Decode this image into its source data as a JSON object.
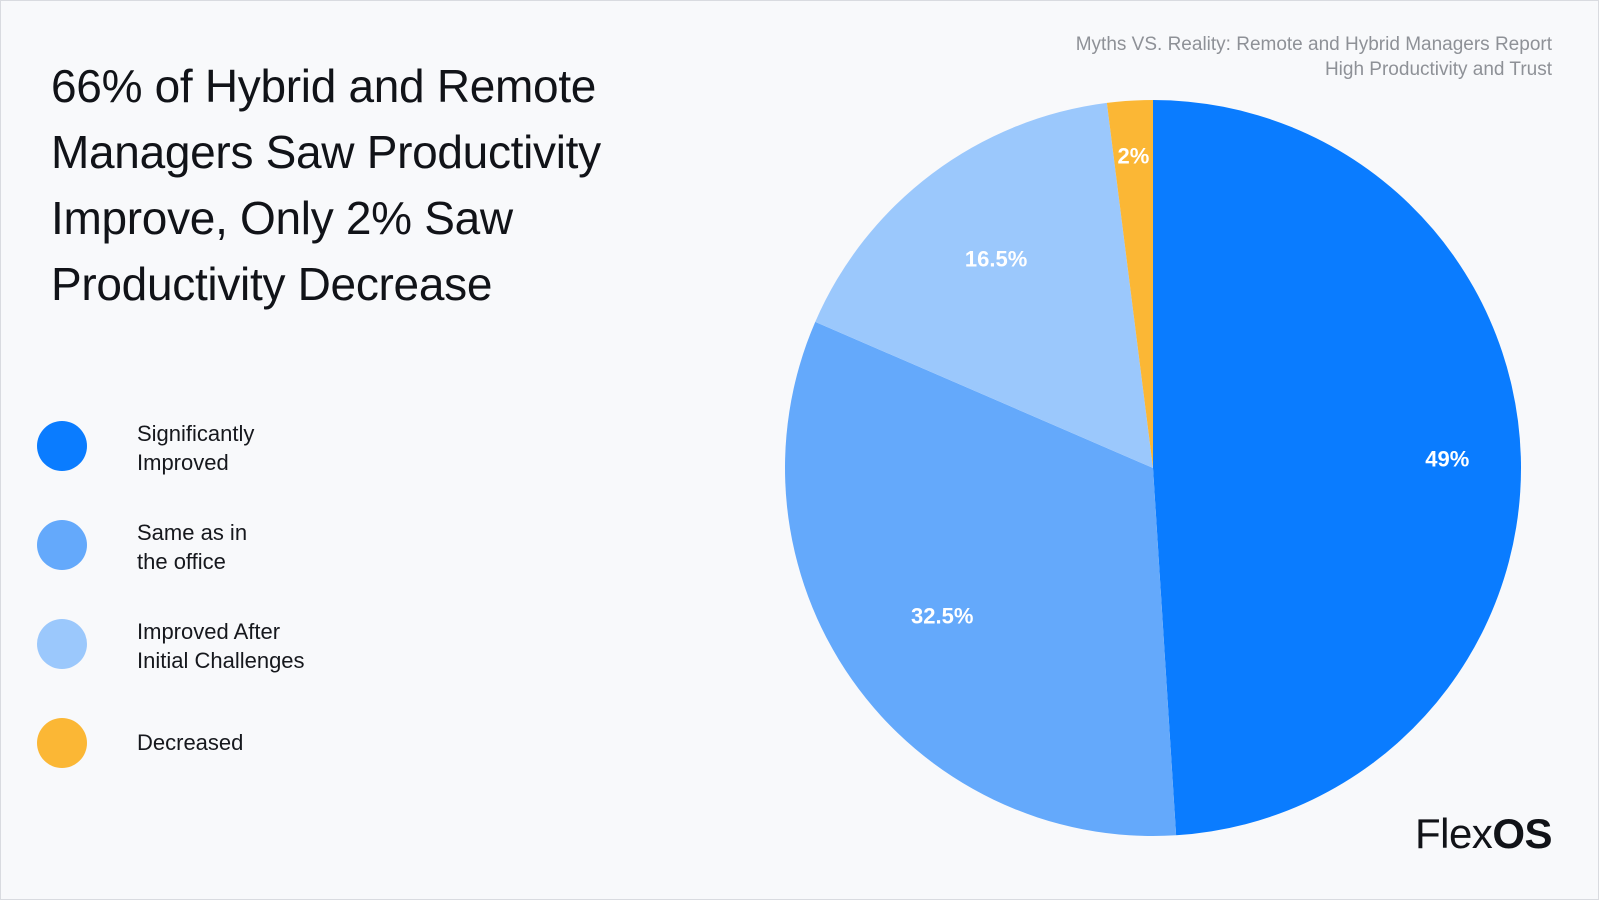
{
  "headline": "66% of Hybrid and Remote Managers Saw Productivity Improve, Only 2% Saw Productivity Decrease",
  "subtitle": "Myths VS. Reality: Remote and Hybrid Managers Report High Productivity and Trust",
  "brand": {
    "regular": "Flex",
    "bold": "OS"
  },
  "chart_data": {
    "type": "pie",
    "title": "66% of Hybrid and Remote Managers Saw Productivity Improve, Only 2% Saw Productivity Decrease",
    "legend_position": "left",
    "slices": [
      {
        "name": "Significantly Improved",
        "label": "Significantly\nImproved",
        "value": 49,
        "display": "49%",
        "color": "#0a7cff"
      },
      {
        "name": "Same as in the office",
        "label": "Same as in\nthe office",
        "value": 32.5,
        "display": "32.5%",
        "color": "#64a9fb"
      },
      {
        "name": "Improved After Initial Challenges",
        "label": "Improved After\nInitial Challenges",
        "value": 16.5,
        "display": "16.5%",
        "color": "#9bc8fc"
      },
      {
        "name": "Decreased",
        "label": "Decreased",
        "value": 2,
        "display": "2%",
        "color": "#fbb735"
      }
    ]
  }
}
